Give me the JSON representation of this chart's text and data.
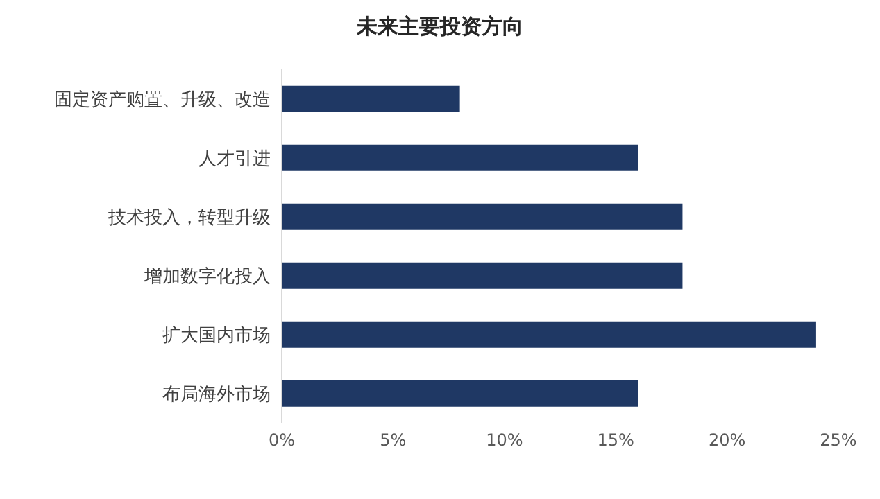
{
  "chart_data": {
    "type": "bar",
    "orientation": "horizontal",
    "title": "未来主要投资方向",
    "categories": [
      "固定资产购置、升级、改造",
      "人才引进",
      "技术投入，转型升级",
      "增加数字化投入",
      "扩大国内市场",
      "布局海外市场"
    ],
    "values": [
      8,
      16,
      18,
      18,
      24,
      16
    ],
    "color": "#1f3864",
    "xlim": [
      0,
      25
    ],
    "xticks": [
      {
        "value": 0,
        "label": "0%"
      },
      {
        "value": 5,
        "label": "5%"
      },
      {
        "value": 10,
        "label": "10%"
      },
      {
        "value": 15,
        "label": "15%"
      },
      {
        "value": 20,
        "label": "20%"
      },
      {
        "value": 25,
        "label": "25%"
      }
    ],
    "grid": false,
    "legend": false
  }
}
